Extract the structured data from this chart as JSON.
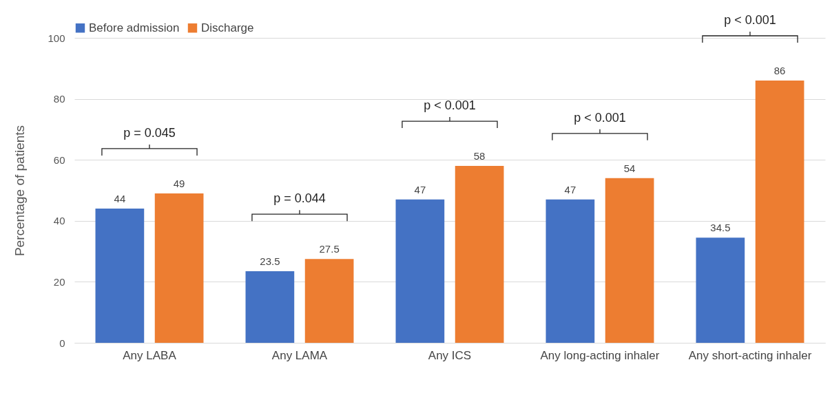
{
  "chart_data": {
    "type": "bar",
    "ylabel": "Percentage of patients",
    "categories": [
      "Any LABA",
      "Any LAMA",
      "Any ICS",
      "Any long-acting inhaler",
      "Any short-acting inhaler"
    ],
    "series": [
      {
        "name": "Before admission",
        "color": "#4472c4",
        "values": [
          44,
          23.5,
          47,
          47,
          34.5
        ]
      },
      {
        "name": "Discharge",
        "color": "#ed7d31",
        "values": [
          49,
          27.5,
          58,
          54,
          86
        ]
      }
    ],
    "ylim": [
      0,
      100
    ],
    "yticks": [
      0,
      20,
      40,
      60,
      80,
      100
    ],
    "grid": "y",
    "legend": "top",
    "data_labels": true,
    "annotations": [
      "p = 0.045",
      "p = 0.044",
      "p < 0.001",
      "p < 0.001",
      "p < 0.001"
    ]
  }
}
